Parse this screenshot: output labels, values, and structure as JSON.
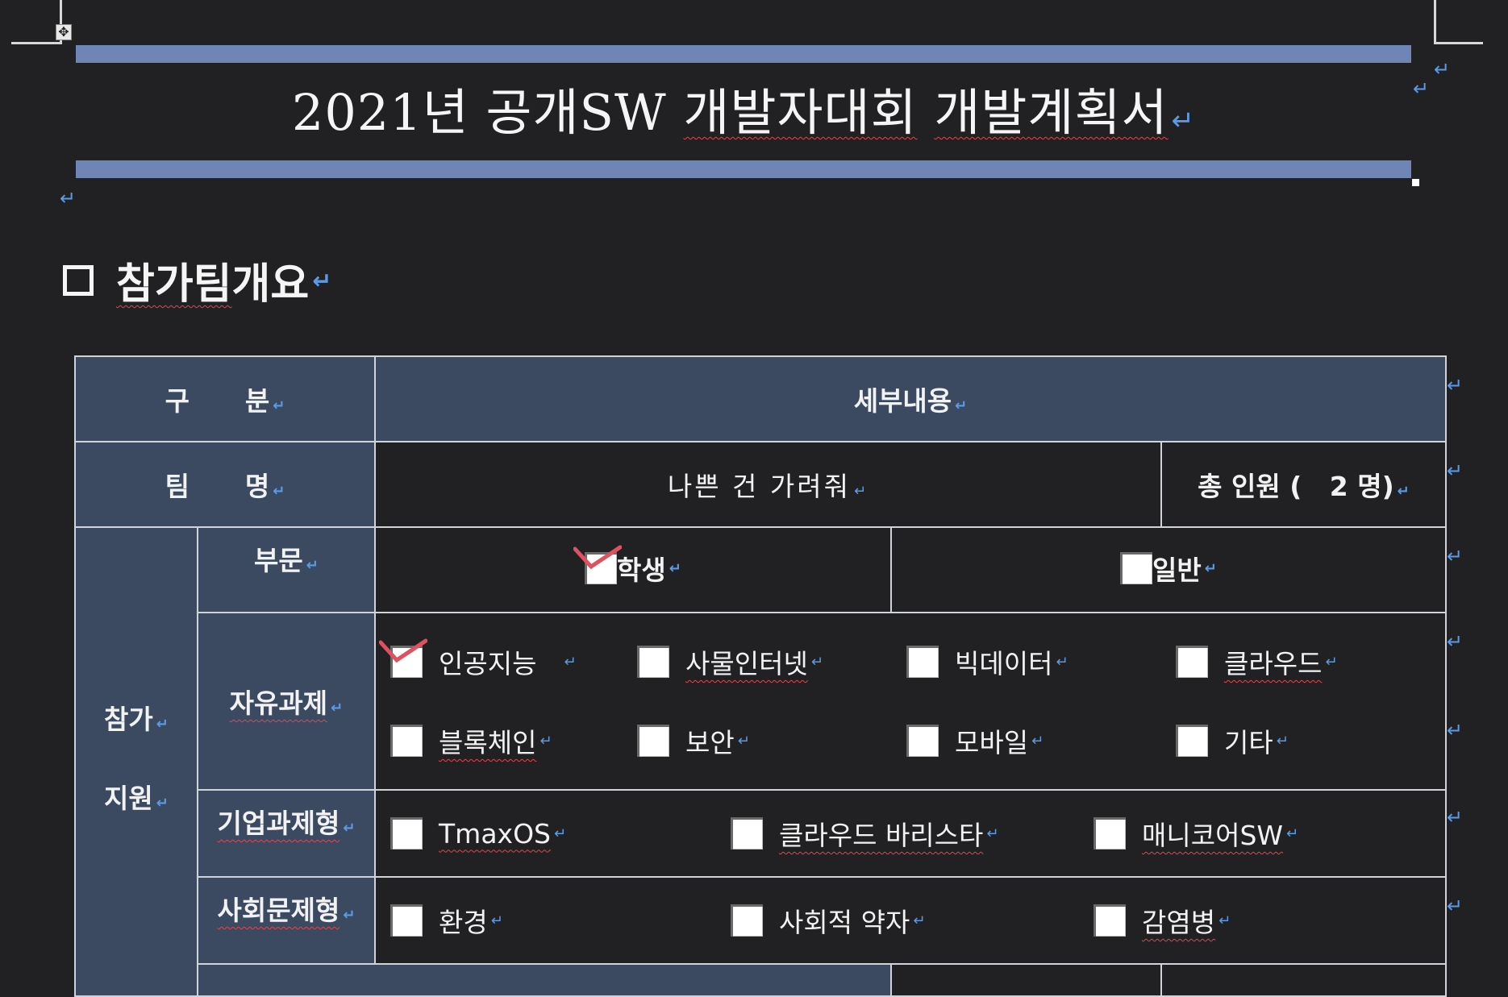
{
  "document": {
    "title_parts": [
      "2021년 공개SW ",
      "개발자대회",
      " ",
      "개발계획서"
    ],
    "section_heading_parts": [
      "참가팀",
      " 개요"
    ]
  },
  "table": {
    "header": {
      "category": "구      분",
      "details": "세부내용"
    },
    "team": {
      "label": "팀      명",
      "name": "나쁜 건 가려줘",
      "total": "총 인원 (   2 명)"
    },
    "participation": {
      "label_line1": "참가",
      "label_line2": "지원"
    },
    "division": {
      "label": "부문",
      "options": [
        {
          "label": "학생",
          "checked": true
        },
        {
          "label": "일반",
          "checked": false
        }
      ]
    },
    "free_topic": {
      "label": "자유과제",
      "options": [
        {
          "label": "인공지능",
          "checked": true
        },
        {
          "label": "사물인터넷",
          "checked": false
        },
        {
          "label": "빅데이터",
          "checked": false
        },
        {
          "label": "클라우드",
          "checked": false
        },
        {
          "label": "블록체인",
          "checked": false
        },
        {
          "label": "보안",
          "checked": false
        },
        {
          "label": "모바일",
          "checked": false
        },
        {
          "label": "기타",
          "checked": false
        }
      ]
    },
    "corporate_topic": {
      "label": "기업과제형",
      "options": [
        {
          "label": "TmaxOS",
          "checked": false
        },
        {
          "label": "클라우드 바리스타",
          "checked": false
        },
        {
          "label": "매니코어SW",
          "checked": false
        }
      ]
    },
    "social_topic": {
      "label": "사회문제형",
      "options": [
        {
          "label": "환경",
          "checked": false
        },
        {
          "label": "사회적 약자",
          "checked": false
        },
        {
          "label": "감염병",
          "checked": false
        }
      ]
    }
  },
  "colors": {
    "background": "#212123",
    "header_fill": "#3b4a61",
    "title_bar": "#6f85b6",
    "paragraph_mark": "#5b9be6",
    "spell_underline": "#e0474c",
    "check_mark": "#e05060"
  },
  "icons": {
    "paragraph_mark": "↵",
    "move_handle": "✥"
  }
}
